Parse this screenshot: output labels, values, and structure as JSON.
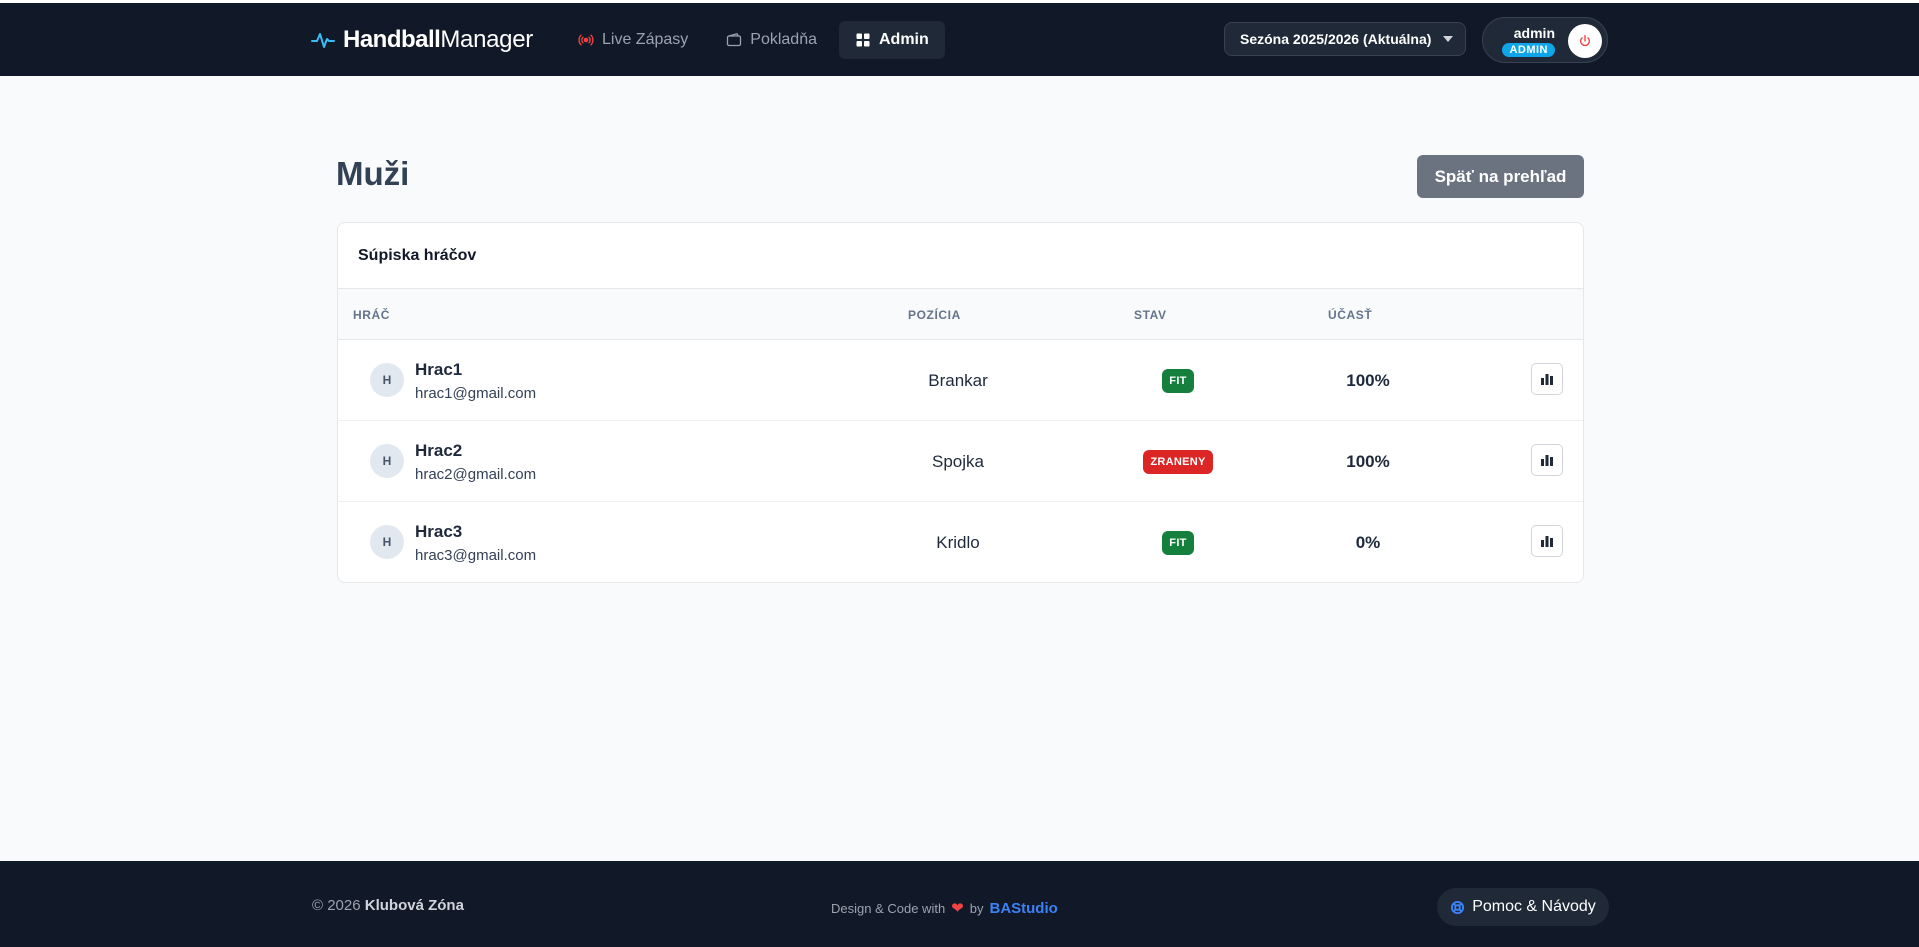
{
  "brand": {
    "bold": "Handball",
    "light": "Manager"
  },
  "nav": [
    {
      "label": "Live Zápasy",
      "icon": "broadcast-icon"
    },
    {
      "label": "Pokladňa",
      "icon": "wallet-icon"
    },
    {
      "label": "Admin",
      "icon": "grid-icon",
      "active": true
    }
  ],
  "season": {
    "selected": "Sezóna 2025/2026 (Aktuálna)"
  },
  "user": {
    "name": "admin",
    "role": "ADMIN"
  },
  "page": {
    "title": "Muži",
    "back_label": "Späť na prehľad"
  },
  "roster": {
    "title": "Súpiska hráčov",
    "columns": [
      "HRÁČ",
      "POZÍCIA",
      "STAV",
      "ÚČASŤ"
    ],
    "players": [
      {
        "initial": "H",
        "name": "Hrac1",
        "email": "hrac1@gmail.com",
        "position": "Brankar",
        "status": "FIT",
        "attendance": "100%"
      },
      {
        "initial": "H",
        "name": "Hrac2",
        "email": "hrac2@gmail.com",
        "position": "Spojka",
        "status": "ZRANENY",
        "attendance": "100%"
      },
      {
        "initial": "H",
        "name": "Hrac3",
        "email": "hrac3@gmail.com",
        "position": "Kridlo",
        "status": "FIT",
        "attendance": "0%"
      }
    ]
  },
  "footer": {
    "copyright": "© 2026",
    "club": "Klubová Zóna",
    "made_prefix": "Design & Code with",
    "made_by": "by",
    "studio": "BAStudio",
    "help_label": "Pomoc & Návody"
  },
  "colors": {
    "navbar": "#111827",
    "fit": "#15803d",
    "injured": "#dc2626",
    "role_badge": "#0ea5e9",
    "studio": "#3b82f6"
  }
}
